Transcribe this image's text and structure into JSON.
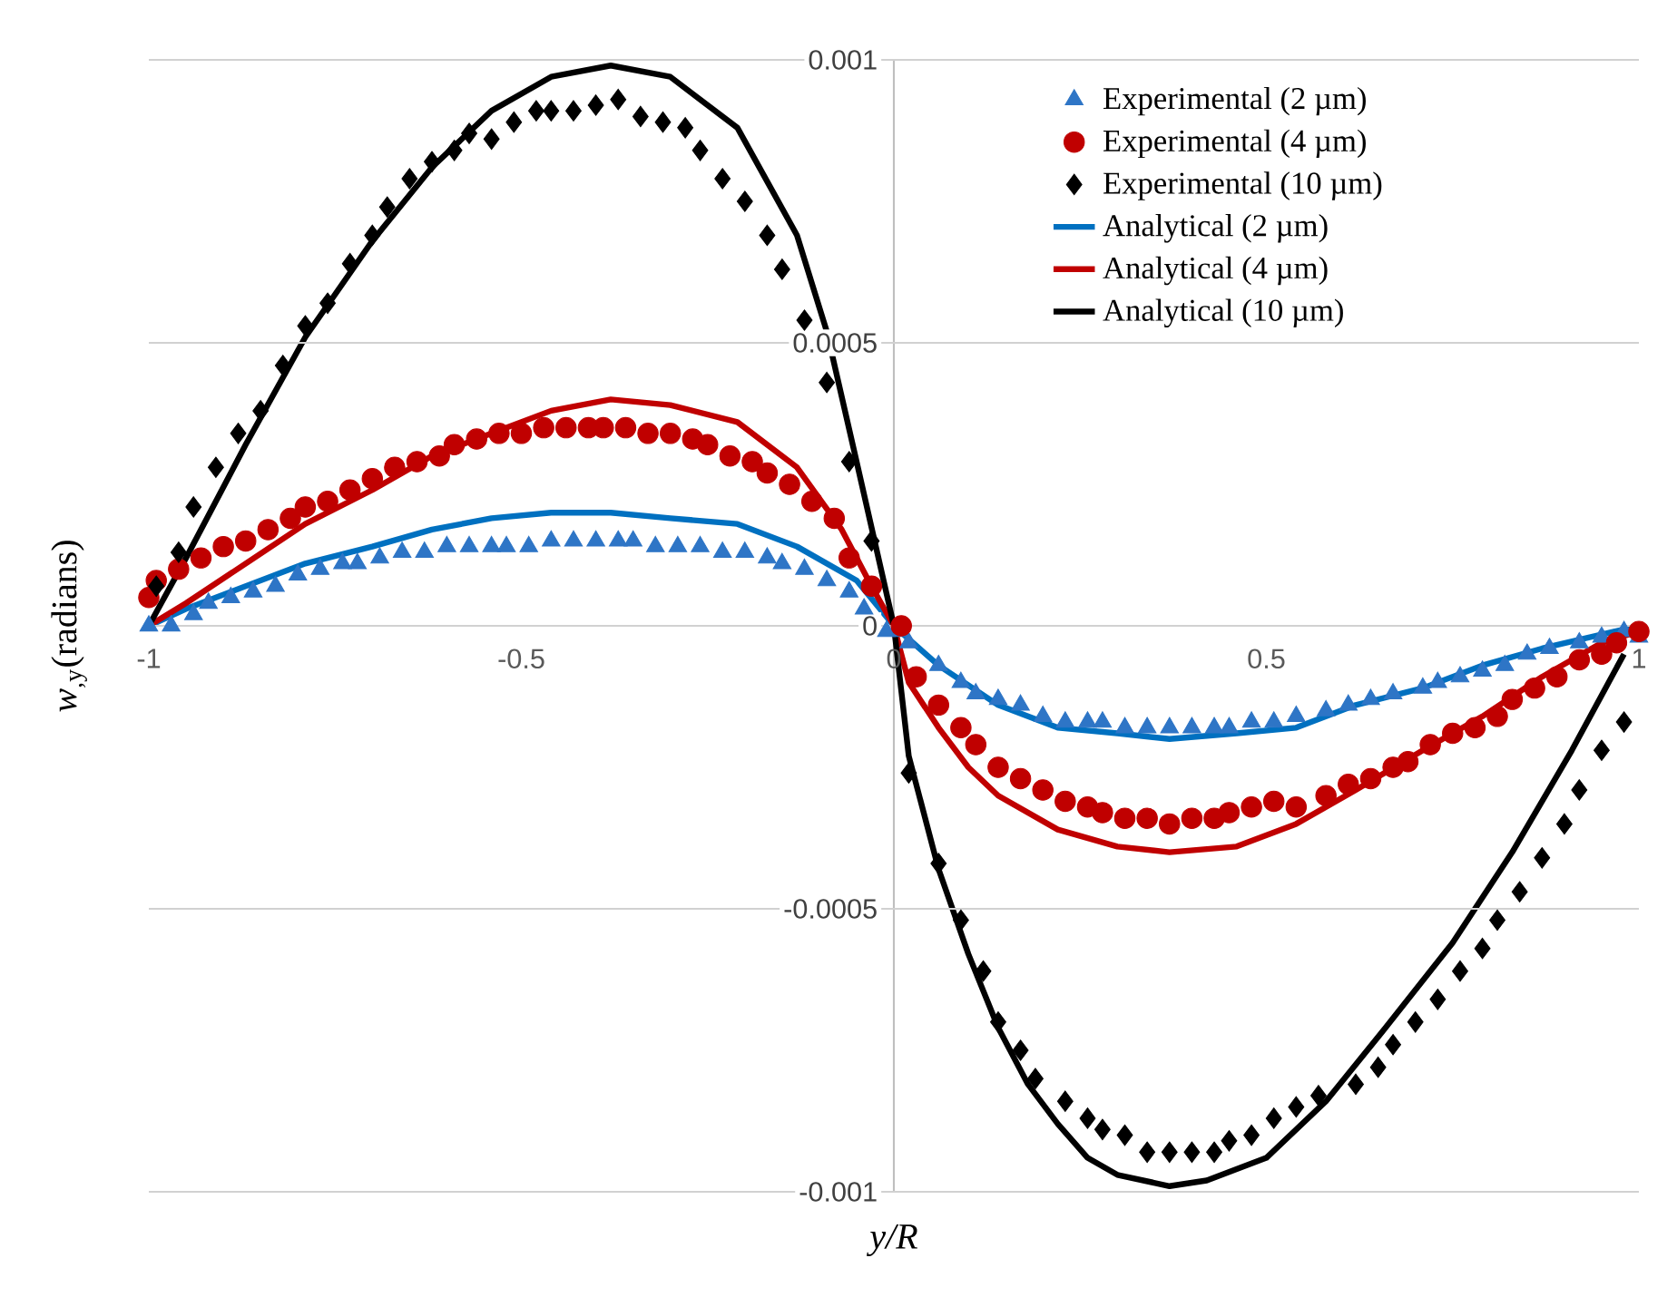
{
  "chart_data": {
    "type": "line",
    "xlabel": "y/R",
    "ylabel": "*w*$_{,y}$(radians)",
    "xlim": [
      -1,
      1
    ],
    "ylim": [
      -0.001,
      0.001
    ],
    "xticks": [
      -1,
      -0.5,
      0,
      0.5,
      1
    ],
    "yticks": [
      -0.001,
      -0.0005,
      0,
      0.0005,
      0.001
    ],
    "grid": "y",
    "legend": "top right",
    "series": [
      {
        "name": "Experimental (2 µm)",
        "type": "scatter",
        "marker": "triangle",
        "color": "#2e75c6",
        "x": [
          -1,
          -0.97,
          -0.94,
          -0.92,
          -0.89,
          -0.86,
          -0.83,
          -0.8,
          -0.77,
          -0.74,
          -0.72,
          -0.69,
          -0.66,
          -0.63,
          -0.6,
          -0.57,
          -0.54,
          -0.52,
          -0.49,
          -0.46,
          -0.43,
          -0.4,
          -0.37,
          -0.35,
          -0.32,
          -0.29,
          -0.26,
          -0.23,
          -0.2,
          -0.17,
          -0.15,
          -0.12,
          -0.09,
          -0.06,
          -0.04,
          -0.01,
          0.01,
          0.02,
          0.06,
          0.09,
          0.11,
          0.14,
          0.17,
          0.2,
          0.23,
          0.26,
          0.28,
          0.31,
          0.34,
          0.37,
          0.4,
          0.43,
          0.45,
          0.48,
          0.51,
          0.54,
          0.58,
          0.61,
          0.64,
          0.67,
          0.71,
          0.73,
          0.76,
          0.79,
          0.82,
          0.85,
          0.88,
          0.92,
          0.95,
          0.98,
          1.0
        ],
        "values": [
          0,
          0,
          2e-05,
          4e-05,
          5e-05,
          6e-05,
          7e-05,
          9e-05,
          0.0001,
          0.00011,
          0.00011,
          0.00012,
          0.00013,
          0.00013,
          0.00014,
          0.00014,
          0.00014,
          0.00014,
          0.00014,
          0.00015,
          0.00015,
          0.00015,
          0.00015,
          0.00015,
          0.00014,
          0.00014,
          0.00014,
          0.00013,
          0.00013,
          0.00012,
          0.00011,
          0.0001,
          8e-05,
          6e-05,
          3e-05,
          -1e-05,
          -1e-05,
          -3e-05,
          -7e-05,
          -0.0001,
          -0.00012,
          -0.00013,
          -0.00014,
          -0.00016,
          -0.00017,
          -0.00017,
          -0.00017,
          -0.00018,
          -0.00018,
          -0.00018,
          -0.00018,
          -0.00018,
          -0.00018,
          -0.00017,
          -0.00017,
          -0.00016,
          -0.00015,
          -0.00014,
          -0.00013,
          -0.00012,
          -0.00011,
          -0.0001,
          -9e-05,
          -8e-05,
          -7e-05,
          -5e-05,
          -4e-05,
          -3e-05,
          -2e-05,
          -1e-05,
          -2e-05
        ]
      },
      {
        "name": "Experimental (4 µm)",
        "type": "scatter",
        "marker": "circle",
        "color": "#c00000",
        "x": [
          -1,
          -0.99,
          -0.96,
          -0.93,
          -0.9,
          -0.87,
          -0.84,
          -0.81,
          -0.79,
          -0.76,
          -0.73,
          -0.7,
          -0.67,
          -0.64,
          -0.61,
          -0.59,
          -0.56,
          -0.53,
          -0.5,
          -0.47,
          -0.44,
          -0.41,
          -0.39,
          -0.36,
          -0.33,
          -0.3,
          -0.27,
          -0.25,
          -0.22,
          -0.19,
          -0.17,
          -0.14,
          -0.11,
          -0.08,
          -0.06,
          -0.03,
          0.01,
          0.03,
          0.06,
          0.09,
          0.11,
          0.14,
          0.17,
          0.2,
          0.23,
          0.26,
          0.28,
          0.31,
          0.34,
          0.37,
          0.4,
          0.43,
          0.45,
          0.48,
          0.51,
          0.54,
          0.58,
          0.61,
          0.64,
          0.67,
          0.69,
          0.72,
          0.75,
          0.78,
          0.81,
          0.83,
          0.86,
          0.89,
          0.92,
          0.95,
          0.97,
          1.0
        ],
        "values": [
          5e-05,
          8e-05,
          0.0001,
          0.00012,
          0.00014,
          0.00015,
          0.00017,
          0.00019,
          0.00021,
          0.00022,
          0.00024,
          0.00026,
          0.00028,
          0.00029,
          0.0003,
          0.00032,
          0.00033,
          0.00034,
          0.00034,
          0.00035,
          0.00035,
          0.00035,
          0.00035,
          0.00035,
          0.00034,
          0.00034,
          0.00033,
          0.00032,
          0.0003,
          0.00029,
          0.00027,
          0.00025,
          0.00022,
          0.00019,
          0.00012,
          7e-05,
          0,
          -9e-05,
          -0.00014,
          -0.00018,
          -0.00021,
          -0.00025,
          -0.00027,
          -0.00029,
          -0.00031,
          -0.00032,
          -0.00033,
          -0.00034,
          -0.00034,
          -0.00035,
          -0.00034,
          -0.00034,
          -0.00033,
          -0.00032,
          -0.00031,
          -0.00032,
          -0.0003,
          -0.00028,
          -0.00027,
          -0.00025,
          -0.00024,
          -0.00021,
          -0.00019,
          -0.00018,
          -0.00016,
          -0.00013,
          -0.00011,
          -9e-05,
          -6e-05,
          -5e-05,
          -3e-05,
          -1e-05
        ]
      },
      {
        "name": "Experimental (10 µm)",
        "type": "scatter",
        "marker": "diamond",
        "color": "#000000",
        "x": [
          -0.99,
          -0.96,
          -0.94,
          -0.91,
          -0.88,
          -0.85,
          -0.82,
          -0.79,
          -0.76,
          -0.73,
          -0.7,
          -0.68,
          -0.65,
          -0.62,
          -0.59,
          -0.57,
          -0.54,
          -0.51,
          -0.48,
          -0.46,
          -0.43,
          -0.4,
          -0.37,
          -0.34,
          -0.31,
          -0.28,
          -0.26,
          -0.23,
          -0.2,
          -0.17,
          -0.15,
          -0.12,
          -0.09,
          -0.06,
          -0.03,
          0.02,
          0.06,
          0.09,
          0.12,
          0.14,
          0.17,
          0.19,
          0.23,
          0.26,
          0.28,
          0.31,
          0.34,
          0.37,
          0.4,
          0.43,
          0.45,
          0.48,
          0.51,
          0.54,
          0.57,
          0.62,
          0.65,
          0.67,
          0.7,
          0.73,
          0.76,
          0.79,
          0.81,
          0.84,
          0.87,
          0.9,
          0.92,
          0.95,
          0.98
        ],
        "values": [
          7e-05,
          0.00013,
          0.00021,
          0.00028,
          0.00034,
          0.00038,
          0.00046,
          0.00053,
          0.00057,
          0.00064,
          0.00069,
          0.00074,
          0.00079,
          0.00082,
          0.00084,
          0.00087,
          0.00086,
          0.00089,
          0.00091,
          0.00091,
          0.00091,
          0.00092,
          0.00093,
          0.0009,
          0.00089,
          0.00088,
          0.00084,
          0.00079,
          0.00075,
          0.00069,
          0.00063,
          0.00054,
          0.00043,
          0.00029,
          0.00015,
          -0.00026,
          -0.00042,
          -0.00052,
          -0.00061,
          -0.0007,
          -0.00075,
          -0.0008,
          -0.00084,
          -0.00087,
          -0.00089,
          -0.0009,
          -0.00093,
          -0.00093,
          -0.00093,
          -0.00093,
          -0.00091,
          -0.0009,
          -0.00087,
          -0.00085,
          -0.00083,
          -0.00081,
          -0.00078,
          -0.00074,
          -0.0007,
          -0.00066,
          -0.00061,
          -0.00057,
          -0.00052,
          -0.00047,
          -0.00041,
          -0.00035,
          -0.00029,
          -0.00022,
          -0.00017
        ]
      },
      {
        "name": "Analytical (2 µm)",
        "color": "#0070c0",
        "x": [
          -1,
          -0.95,
          -0.87,
          -0.79,
          -0.7,
          -0.62,
          -0.54,
          -0.46,
          -0.38,
          -0.3,
          -0.21,
          -0.13,
          -0.05,
          0,
          0.06,
          0.14,
          0.22,
          0.3,
          0.37,
          0.46,
          0.54,
          0.62,
          0.71,
          0.79,
          0.87,
          1.0
        ],
        "values": [
          0,
          3e-05,
          7e-05,
          0.00011,
          0.00014,
          0.00017,
          0.00019,
          0.0002,
          0.0002,
          0.00019,
          0.00018,
          0.00014,
          8e-05,
          0,
          -7e-05,
          -0.00014,
          -0.00018,
          -0.00019,
          -0.0002,
          -0.00019,
          -0.00018,
          -0.00014,
          -0.00011,
          -7e-05,
          -4e-05,
          0
        ]
      },
      {
        "name": "Analytical (4 µm)",
        "color": "#c00000",
        "x": [
          -1,
          -0.95,
          -0.87,
          -0.79,
          -0.7,
          -0.62,
          -0.54,
          -0.46,
          -0.38,
          -0.3,
          -0.21,
          -0.13,
          -0.07,
          -0.03,
          0,
          0.02,
          0.06,
          0.1,
          0.14,
          0.22,
          0.3,
          0.37,
          0.46,
          0.54,
          0.62,
          0.71,
          0.79,
          0.87,
          0.95,
          1.0
        ],
        "values": [
          0,
          4e-05,
          0.00011,
          0.00018,
          0.00024,
          0.0003,
          0.00034,
          0.00038,
          0.0004,
          0.00039,
          0.00036,
          0.00028,
          0.00017,
          7e-05,
          0,
          -0.0001,
          -0.00018,
          -0.00025,
          -0.0003,
          -0.00036,
          -0.00039,
          -0.0004,
          -0.00039,
          -0.00035,
          -0.00029,
          -0.00022,
          -0.00016,
          -9e-05,
          -3e-05,
          -1e-05
        ]
      },
      {
        "name": "Analytical (10 µm)",
        "color": "#000000",
        "x": [
          -1,
          -0.95,
          -0.87,
          -0.79,
          -0.7,
          -0.62,
          -0.54,
          -0.46,
          -0.38,
          -0.3,
          -0.21,
          -0.13,
          -0.09,
          -0.05,
          0,
          0.02,
          0.06,
          0.1,
          0.14,
          0.18,
          0.22,
          0.26,
          0.3,
          0.37,
          0.42,
          0.5,
          0.58,
          0.66,
          0.75,
          0.83,
          0.91,
          0.98
        ],
        "values": [
          0,
          0.00012,
          0.00032,
          0.00051,
          0.00068,
          0.00081,
          0.00091,
          0.00097,
          0.00099,
          0.00097,
          0.00088,
          0.00069,
          0.00052,
          0.00029,
          0,
          -0.00023,
          -0.00043,
          -0.00058,
          -0.00071,
          -0.00081,
          -0.00088,
          -0.00094,
          -0.00097,
          -0.00099,
          -0.00098,
          -0.00094,
          -0.00084,
          -0.00071,
          -0.00056,
          -0.0004,
          -0.00022,
          -5e-05
        ]
      }
    ]
  }
}
